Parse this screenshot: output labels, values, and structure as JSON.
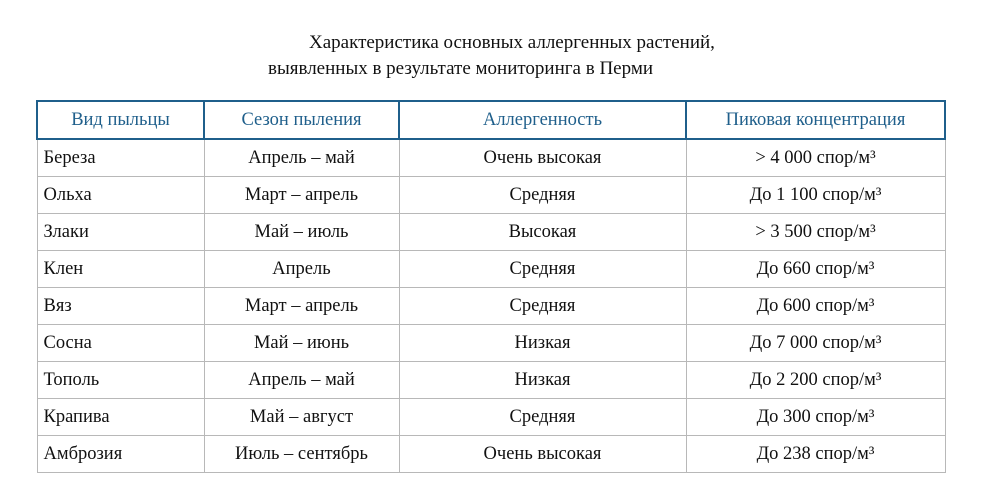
{
  "title": {
    "line1": "Характеристика основных аллергенных растений,",
    "line2": "выявленных в результате мониторинга в Перми"
  },
  "table": {
    "headers": [
      "Вид пыльцы",
      "Сезон пыления",
      "Аллергенность",
      "Пиковая концентрация"
    ],
    "rows": [
      [
        "Береза",
        "Апрель – май",
        "Очень высокая",
        "> 4 000 спор/м³"
      ],
      [
        "Ольха",
        "Март – апрель",
        "Средняя",
        "До 1 100 спор/м³"
      ],
      [
        "Злаки",
        "Май – июль",
        "Высокая",
        "> 3 500 спор/м³"
      ],
      [
        "Клен",
        "Апрель",
        "Средняя",
        "До 660 спор/м³"
      ],
      [
        "Вяз",
        "Март – апрель",
        "Средняя",
        "До 600 спор/м³"
      ],
      [
        "Сосна",
        "Май – июнь",
        "Низкая",
        "До 7 000 спор/м³"
      ],
      [
        "Тополь",
        "Апрель – май",
        "Низкая",
        "До 2 200 спор/м³"
      ],
      [
        "Крапива",
        "Май – август",
        "Средняя",
        "До 300 спор/м³"
      ],
      [
        "Амброзия",
        "Июль – сентябрь",
        "Очень высокая",
        "До 238 спор/м³"
      ]
    ]
  },
  "colors": {
    "header": "#1f5f8b",
    "grid": "#b8b8b8"
  }
}
